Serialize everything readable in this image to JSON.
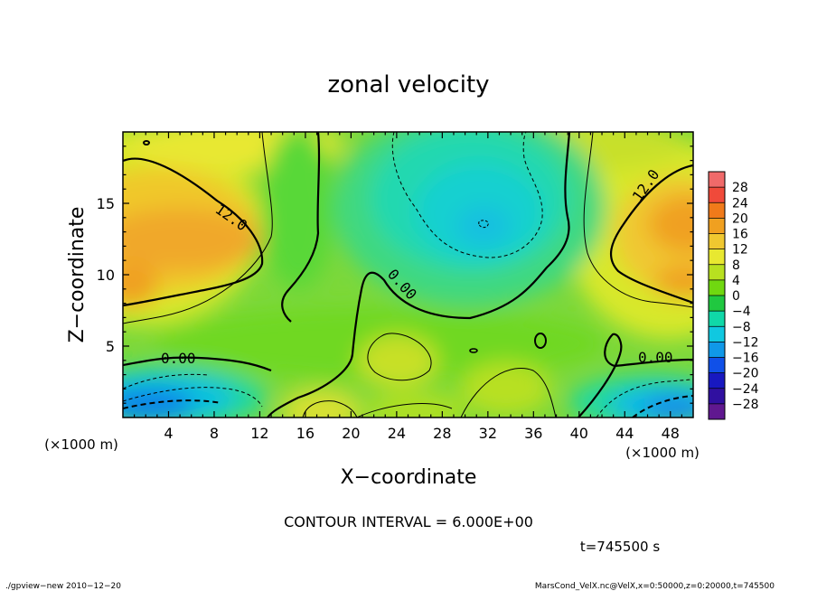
{
  "title": "zonal velocity",
  "x_axis": {
    "label": "X−coordinate",
    "unit": "(×1000 m)",
    "unit_right": "(×1000 m)",
    "ticks": [
      "4",
      "8",
      "12",
      "16",
      "20",
      "24",
      "28",
      "32",
      "36",
      "40",
      "44",
      "48"
    ]
  },
  "y_axis": {
    "label": "Z−coordinate",
    "ticks": [
      "5",
      "10",
      "15"
    ]
  },
  "contour_interval": "CONTOUR INTERVAL = 6.000E+00",
  "time_label": "t=745500 s",
  "footer_left": "./gpview−new  2010−12−20",
  "footer_right": "MarsCond_VelX.nc@VelX,x=0:50000,z=0:20000,t=745500",
  "colorbar": {
    "labels": [
      "28",
      "24",
      "20",
      "16",
      "12",
      "8",
      "4",
      "0",
      "−4",
      "−8",
      "−12",
      "−16",
      "−20",
      "−24",
      "−28"
    ],
    "colors": [
      "#f06a6a",
      "#f04a3a",
      "#f07a1a",
      "#f0a020",
      "#f0c830",
      "#e8e830",
      "#b8e020",
      "#70d810",
      "#20c840",
      "#10d8a8",
      "#10c8e0",
      "#1098e8",
      "#1050e8",
      "#1818c0",
      "#3010a0",
      "#601890"
    ]
  },
  "contour_labels": [
    "12.0",
    "12.0",
    "0.00",
    "0.00",
    "0.00"
  ],
  "chart_data": {
    "type": "heatmap",
    "title": "zonal velocity",
    "xlabel": "X−coordinate",
    "ylabel": "Z−coordinate",
    "x_unit": "(×1000 m)",
    "xlim": [
      0,
      50
    ],
    "ylim": [
      0,
      20
    ],
    "x_ticks": [
      4,
      8,
      12,
      16,
      20,
      24,
      28,
      32,
      36,
      40,
      44,
      48
    ],
    "y_ticks": [
      5,
      10,
      15
    ],
    "contour_interval": 6.0,
    "colorbar_range": [
      -28,
      28
    ],
    "colorbar_ticks": [
      28,
      24,
      20,
      16,
      12,
      8,
      4,
      0,
      -4,
      -8,
      -12,
      -16,
      -20,
      -24,
      -28
    ],
    "features": [
      {
        "type": "max",
        "x": 6,
        "z": 12.5,
        "value": 16
      },
      {
        "type": "max",
        "x": 0.5,
        "z": 9.5,
        "value": 15
      },
      {
        "type": "max",
        "x": 49,
        "z": 13,
        "value": 16
      },
      {
        "type": "max",
        "x": 49,
        "z": 10,
        "value": 14
      },
      {
        "type": "min",
        "x": 31.5,
        "z": 13.2,
        "value": -8
      },
      {
        "type": "min",
        "x": 4,
        "z": 1,
        "value": -13
      },
      {
        "type": "min",
        "x": 48,
        "z": 1,
        "value": -12
      },
      {
        "type": "max",
        "x": 23.5,
        "z": 4,
        "value": 9
      },
      {
        "type": "max",
        "x": 18,
        "z": 0.5,
        "value": 10
      },
      {
        "type": "max",
        "x": 33,
        "z": 1,
        "value": 9
      }
    ]
  }
}
